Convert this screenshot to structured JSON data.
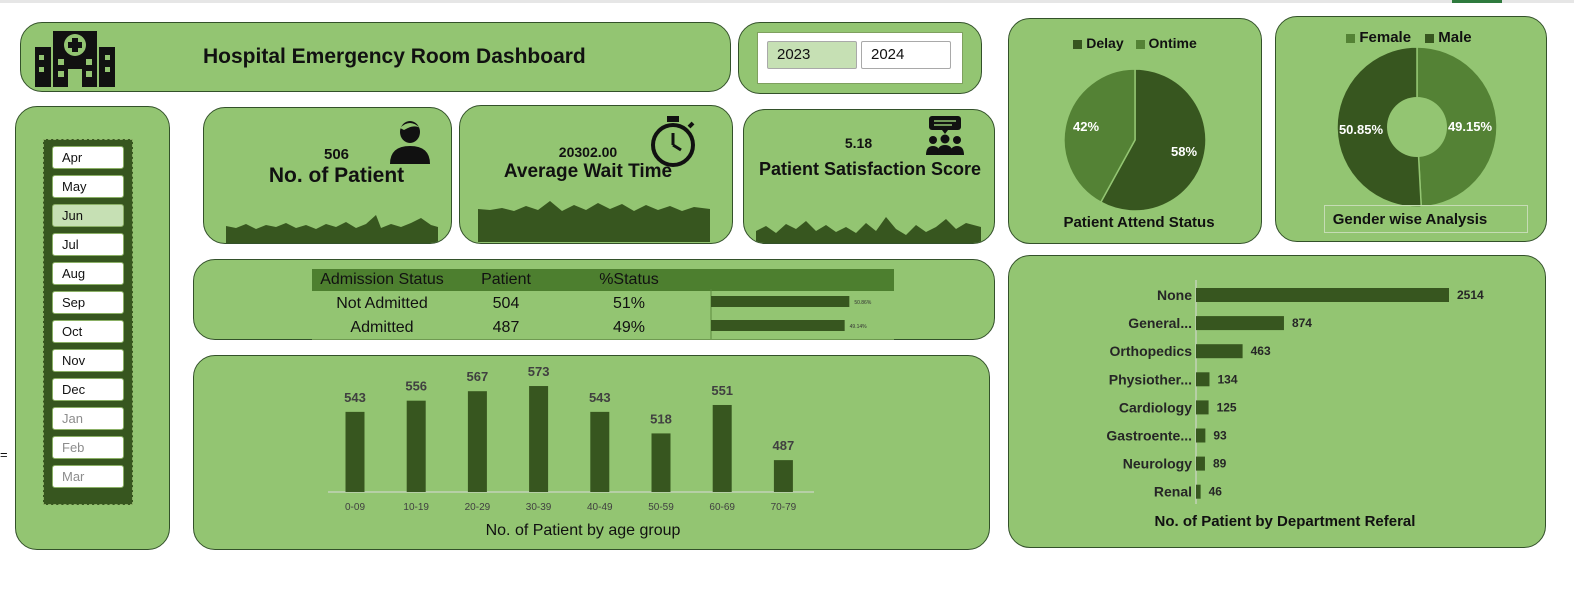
{
  "header": {
    "title": "Hospital Emergency Room Dashboard"
  },
  "years": {
    "items": [
      "2023",
      "2024"
    ],
    "selected": "2023"
  },
  "months": {
    "items": [
      {
        "label": "Apr",
        "state": "normal"
      },
      {
        "label": "May",
        "state": "normal"
      },
      {
        "label": "Jun",
        "state": "selected"
      },
      {
        "label": "Jul",
        "state": "normal"
      },
      {
        "label": "Aug",
        "state": "normal"
      },
      {
        "label": "Sep",
        "state": "normal"
      },
      {
        "label": "Oct",
        "state": "normal"
      },
      {
        "label": "Nov",
        "state": "normal"
      },
      {
        "label": "Dec",
        "state": "normal"
      },
      {
        "label": "Jan",
        "state": "dim"
      },
      {
        "label": "Feb",
        "state": "dim"
      },
      {
        "label": "Mar",
        "state": "dim"
      }
    ]
  },
  "kpis": {
    "patients": {
      "value": "506",
      "label": "No. of Patient",
      "icon": "patient-icon"
    },
    "wait": {
      "value": "20302.00",
      "label": "Average Wait Time",
      "icon": "stopwatch-icon"
    },
    "satisfaction": {
      "value": "5.18",
      "label": "Patient Satisfaction Score",
      "icon": "group-feedback-icon"
    }
  },
  "admission": {
    "headers": [
      "Admission Status",
      "Patient",
      "%Status"
    ],
    "rows": [
      {
        "status": "Not Admitted",
        "patients": "504",
        "pct": "51%",
        "bar_label": "50.86%",
        "fraction": 0.5086
      },
      {
        "status": "Admitted",
        "patients": "487",
        "pct": "49%",
        "bar_label": "49.14%",
        "fraction": 0.4914
      }
    ]
  },
  "chart_data": [
    {
      "type": "pie",
      "title": "Patient Attend Status",
      "legend": [
        "Delay",
        "Ontime"
      ],
      "legend_position": "top",
      "series": [
        {
          "name": "Delay",
          "value": 58,
          "label": "58%",
          "color": "#37561f"
        },
        {
          "name": "Ontime",
          "value": 42,
          "label": "42%",
          "color": "#548235"
        }
      ]
    },
    {
      "type": "pie",
      "subtype": "donut",
      "title": "Gender wise Analysis",
      "legend": [
        "Female",
        "Male"
      ],
      "legend_position": "top",
      "series": [
        {
          "name": "Female",
          "value": 49.15,
          "label": "49.15%",
          "color": "#548235"
        },
        {
          "name": "Male",
          "value": 50.85,
          "label": "50.85%",
          "color": "#37561f"
        }
      ]
    },
    {
      "type": "bar",
      "title": "No. of Patient by age group",
      "categories": [
        "0-09",
        "10-19",
        "20-29",
        "30-39",
        "40-49",
        "50-59",
        "60-69",
        "70-79"
      ],
      "values": [
        543,
        556,
        567,
        573,
        543,
        518,
        551,
        487
      ],
      "ylim": [
        450,
        580
      ],
      "grid": false
    },
    {
      "type": "bar",
      "orientation": "horizontal",
      "title": "No. of Patient by Department Referal",
      "categories": [
        "None",
        "General...",
        "Orthopedics",
        "Physiother...",
        "Cardiology",
        "Gastroente...",
        "Neurology",
        "Renal"
      ],
      "values": [
        2514,
        874,
        463,
        134,
        125,
        93,
        89,
        46
      ],
      "grid": false
    }
  ],
  "colors": {
    "panel": "#93c572",
    "dark": "#37561f",
    "mid": "#548235",
    "border": "#33512a"
  }
}
